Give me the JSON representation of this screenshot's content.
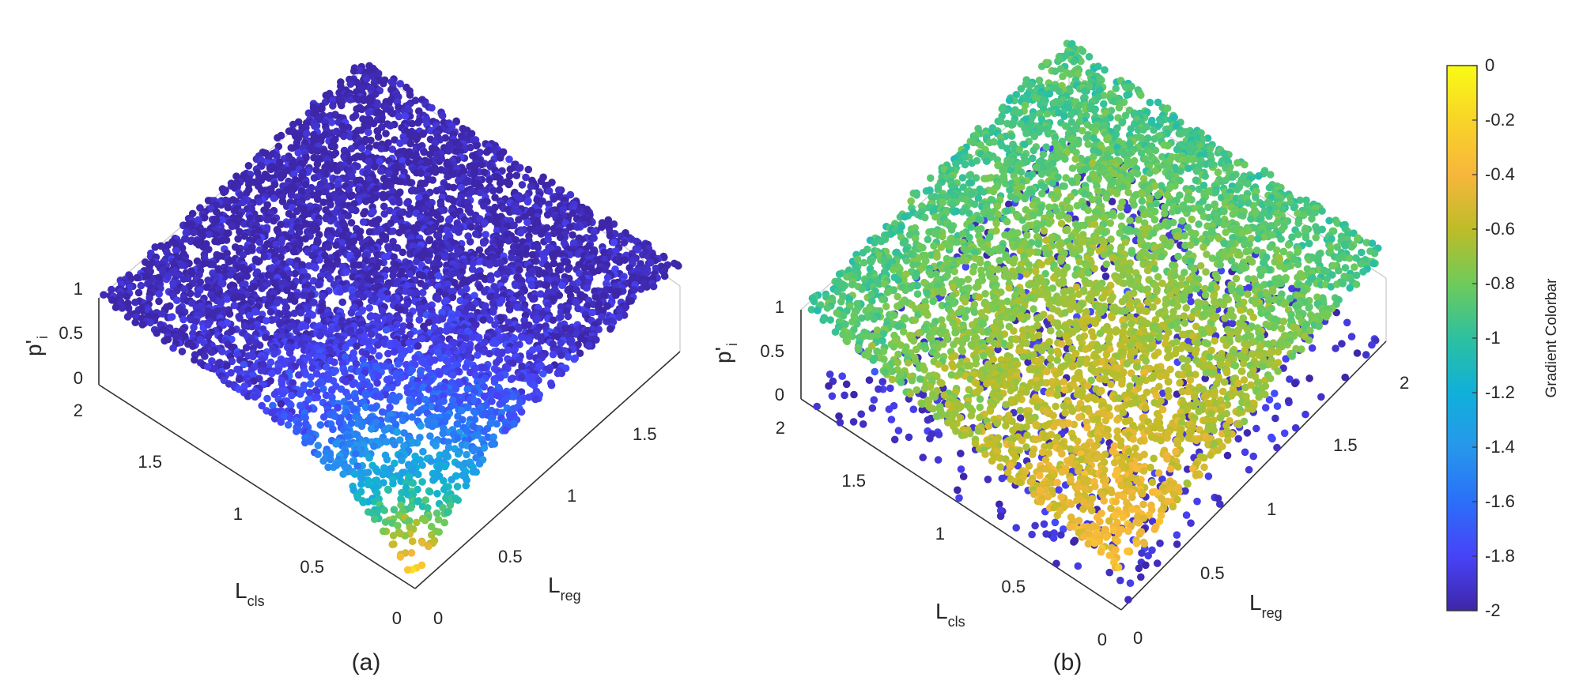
{
  "chart_data": [
    {
      "type": "scatter",
      "panel_label": "(a)",
      "projection": "3d",
      "axes": {
        "x": {
          "label_main": "L",
          "label_sub": "reg",
          "ticks": [
            "0",
            "0.5",
            "1",
            "1.5",
            ""
          ],
          "range": [
            0,
            2
          ]
        },
        "y": {
          "label_main": "L",
          "label_sub": "cls",
          "ticks": [
            "0",
            "0.5",
            "1",
            "1.5",
            "2"
          ],
          "range": [
            0,
            2
          ]
        },
        "z": {
          "label_main": "p'",
          "label_sub": "i",
          "ticks": [
            "0",
            "0.5",
            "1"
          ],
          "range": [
            0,
            1
          ]
        }
      },
      "color_trend": "gradient near -2 (dark blue) across most of the surface; approaches 0 (yellow) near L_cls = 0, L_reg = 0",
      "grid": true
    },
    {
      "type": "scatter",
      "panel_label": "(b)",
      "projection": "3d",
      "axes": {
        "x": {
          "label_main": "L",
          "label_sub": "reg",
          "ticks": [
            "0",
            "0.5",
            "1",
            "1.5",
            "2"
          ],
          "range": [
            0,
            2
          ]
        },
        "y": {
          "label_main": "L",
          "label_sub": "cls",
          "ticks": [
            "0",
            "0.5",
            "1",
            "1.5",
            "2"
          ],
          "range": [
            0,
            2
          ]
        },
        "z": {
          "label_main": "p'",
          "label_sub": "i",
          "ticks": [
            "0",
            "0.5",
            "1"
          ],
          "range": [
            0,
            1
          ]
        }
      },
      "color_trend": "gradient mostly between -0.4 and -1.0 (orange to green); dark blue points along the front edges",
      "grid": true
    }
  ],
  "colorbar": {
    "title": "Gradient Colorbar",
    "range": [
      -2,
      0
    ],
    "ticks": [
      "0",
      "-0.2",
      "-0.4",
      "-0.6",
      "-0.8",
      "-1",
      "-1.2",
      "-1.4",
      "-1.6",
      "-1.8",
      "-2"
    ],
    "colormap": [
      "#3e26a8",
      "#4743f8",
      "#2b6ff9",
      "#2797eb",
      "#10b0d9",
      "#2dc09f",
      "#6ecb5a",
      "#bebc28",
      "#f7b63c",
      "#f8d427",
      "#f9fb15"
    ]
  }
}
